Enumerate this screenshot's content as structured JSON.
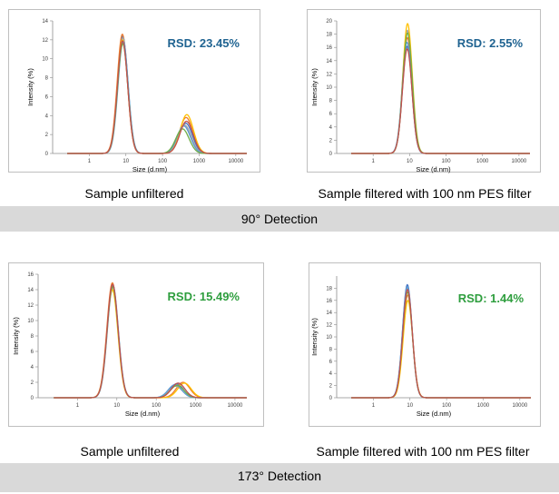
{
  "sections": [
    {
      "band_label": "90° Detection"
    },
    {
      "band_label": "173° Detection"
    }
  ],
  "captions": {
    "c1": "Sample unfiltered",
    "c2": "Sample filtered with 100 nm PES filter",
    "c3": "Sample unfiltered",
    "c4": "Sample filtered with 100 nm PES filter"
  },
  "series_colors": [
    "#4472c4",
    "#ed7d31",
    "#a5a5a5",
    "#ffc000",
    "#5b9bd5",
    "#70ad47",
    "#c0504d"
  ],
  "chart_data": [
    {
      "type": "line",
      "title": "",
      "annotation": "RSD: 23.45%",
      "annotation_color": "#1f6391",
      "xlabel": "Size (d.nm)",
      "ylabel": "Intensity (%)",
      "xscale": "log",
      "xlim": [
        0.1,
        20000
      ],
      "xticks": [
        1,
        10,
        100,
        1000,
        10000
      ],
      "ylim": [
        0,
        14
      ],
      "yticks": [
        0,
        2,
        4,
        6,
        8,
        10,
        12,
        14
      ],
      "series": [
        {
          "color": "#4472c4",
          "peaks": [
            {
              "center": 8.2,
              "height": 12.4,
              "width": 0.14
            },
            {
              "center": 430,
              "height": 3.2,
              "width": 0.18
            }
          ]
        },
        {
          "color": "#ed7d31",
          "peaks": [
            {
              "center": 8.0,
              "height": 12.6,
              "width": 0.14
            },
            {
              "center": 440,
              "height": 3.8,
              "width": 0.18
            }
          ]
        },
        {
          "color": "#a5a5a5",
          "peaks": [
            {
              "center": 8.3,
              "height": 12.2,
              "width": 0.14
            },
            {
              "center": 400,
              "height": 3.0,
              "width": 0.18
            }
          ]
        },
        {
          "color": "#ffc000",
          "peaks": [
            {
              "center": 8.1,
              "height": 12.0,
              "width": 0.14
            },
            {
              "center": 460,
              "height": 4.1,
              "width": 0.18
            }
          ]
        },
        {
          "color": "#5b9bd5",
          "peaks": [
            {
              "center": 8.4,
              "height": 11.8,
              "width": 0.14
            },
            {
              "center": 380,
              "height": 2.9,
              "width": 0.18
            }
          ]
        },
        {
          "color": "#70ad47",
          "peaks": [
            {
              "center": 8.2,
              "height": 11.6,
              "width": 0.14
            },
            {
              "center": 350,
              "height": 2.6,
              "width": 0.18
            }
          ]
        },
        {
          "color": "#c0504d",
          "peaks": [
            {
              "center": 8.1,
              "height": 11.9,
              "width": 0.14
            },
            {
              "center": 450,
              "height": 3.4,
              "width": 0.18
            }
          ]
        }
      ]
    },
    {
      "type": "line",
      "title": "",
      "annotation": "RSD: 2.55%",
      "annotation_color": "#1f6391",
      "xlabel": "Size (d.nm)",
      "ylabel": "Intensity (%)",
      "xscale": "log",
      "xlim": [
        0.1,
        20000
      ],
      "xticks": [
        1,
        10,
        100,
        1000,
        10000
      ],
      "ylim": [
        0,
        20
      ],
      "yticks": [
        0,
        2,
        4,
        6,
        8,
        10,
        12,
        14,
        16,
        18,
        20
      ],
      "series": [
        {
          "color": "#4472c4",
          "peaks": [
            {
              "center": 8.6,
              "height": 16.2,
              "width": 0.13
            }
          ]
        },
        {
          "color": "#ed7d31",
          "peaks": [
            {
              "center": 8.7,
              "height": 17.5,
              "width": 0.13
            }
          ]
        },
        {
          "color": "#a5a5a5",
          "peaks": [
            {
              "center": 8.7,
              "height": 18.6,
              "width": 0.13
            }
          ]
        },
        {
          "color": "#ffc000",
          "peaks": [
            {
              "center": 8.8,
              "height": 19.6,
              "width": 0.13
            }
          ]
        },
        {
          "color": "#5b9bd5",
          "peaks": [
            {
              "center": 8.5,
              "height": 16.8,
              "width": 0.13
            }
          ]
        },
        {
          "color": "#70ad47",
          "peaks": [
            {
              "center": 8.8,
              "height": 18.2,
              "width": 0.13
            }
          ]
        },
        {
          "color": "#c0504d",
          "peaks": [
            {
              "center": 8.6,
              "height": 15.8,
              "width": 0.13
            }
          ]
        }
      ]
    },
    {
      "type": "line",
      "title": "",
      "annotation": "RSD: 15.49%",
      "annotation_color": "#2e9e3e",
      "xlabel": "Size (d.nm)",
      "ylabel": "Intensity (%)",
      "xscale": "log",
      "xlim": [
        0.1,
        20000
      ],
      "xticks": [
        1,
        10,
        100,
        1000,
        10000
      ],
      "ylim": [
        0,
        16
      ],
      "yticks": [
        0,
        2,
        4,
        6,
        8,
        10,
        12,
        14,
        16
      ],
      "series": [
        {
          "color": "#4472c4",
          "peaks": [
            {
              "center": 7.8,
              "height": 14.5,
              "width": 0.14
            },
            {
              "center": 330,
              "height": 1.8,
              "width": 0.17
            }
          ]
        },
        {
          "color": "#ed7d31",
          "peaks": [
            {
              "center": 7.7,
              "height": 14.9,
              "width": 0.14
            },
            {
              "center": 480,
              "height": 2.0,
              "width": 0.17
            }
          ]
        },
        {
          "color": "#a5a5a5",
          "peaks": [
            {
              "center": 7.9,
              "height": 14.3,
              "width": 0.14
            },
            {
              "center": 310,
              "height": 1.5,
              "width": 0.17
            }
          ]
        },
        {
          "color": "#ffc000",
          "peaks": [
            {
              "center": 7.7,
              "height": 14.0,
              "width": 0.14
            },
            {
              "center": 520,
              "height": 1.9,
              "width": 0.17
            }
          ]
        },
        {
          "color": "#5b9bd5",
          "peaks": [
            {
              "center": 7.9,
              "height": 14.6,
              "width": 0.14
            },
            {
              "center": 300,
              "height": 1.7,
              "width": 0.17
            }
          ]
        },
        {
          "color": "#70ad47",
          "peaks": [
            {
              "center": 7.8,
              "height": 14.4,
              "width": 0.14
            },
            {
              "center": 340,
              "height": 1.6,
              "width": 0.17
            }
          ]
        },
        {
          "color": "#c0504d",
          "peaks": [
            {
              "center": 7.8,
              "height": 14.7,
              "width": 0.14
            },
            {
              "center": 360,
              "height": 1.9,
              "width": 0.17
            }
          ]
        }
      ]
    },
    {
      "type": "line",
      "title": "",
      "annotation": "RSD: 1.44%",
      "annotation_color": "#2e9e3e",
      "xlabel": "Size (d.nm)",
      "ylabel": "Intensity (%)",
      "xscale": "log",
      "xlim": [
        0.1,
        20000
      ],
      "xticks": [
        1,
        10,
        100,
        1000,
        10000
      ],
      "ylim": [
        0,
        20
      ],
      "yticks": [
        0,
        2,
        4,
        6,
        8,
        10,
        12,
        14,
        16,
        18
      ],
      "series": [
        {
          "color": "#4472c4",
          "peaks": [
            {
              "center": 8.5,
              "height": 18.6,
              "width": 0.13
            }
          ]
        },
        {
          "color": "#ed7d31",
          "peaks": [
            {
              "center": 8.7,
              "height": 16.9,
              "width": 0.13
            }
          ]
        },
        {
          "color": "#a5a5a5",
          "peaks": [
            {
              "center": 8.6,
              "height": 18.0,
              "width": 0.13
            }
          ]
        },
        {
          "color": "#ffc000",
          "peaks": [
            {
              "center": 8.8,
              "height": 16.0,
              "width": 0.13
            }
          ]
        },
        {
          "color": "#5b9bd5",
          "peaks": [
            {
              "center": 8.5,
              "height": 18.3,
              "width": 0.13
            }
          ]
        },
        {
          "color": "#70ad47",
          "peaks": [
            {
              "center": 8.6,
              "height": 17.4,
              "width": 0.13
            }
          ]
        },
        {
          "color": "#c0504d",
          "peaks": [
            {
              "center": 8.6,
              "height": 17.8,
              "width": 0.13
            }
          ]
        }
      ]
    }
  ]
}
